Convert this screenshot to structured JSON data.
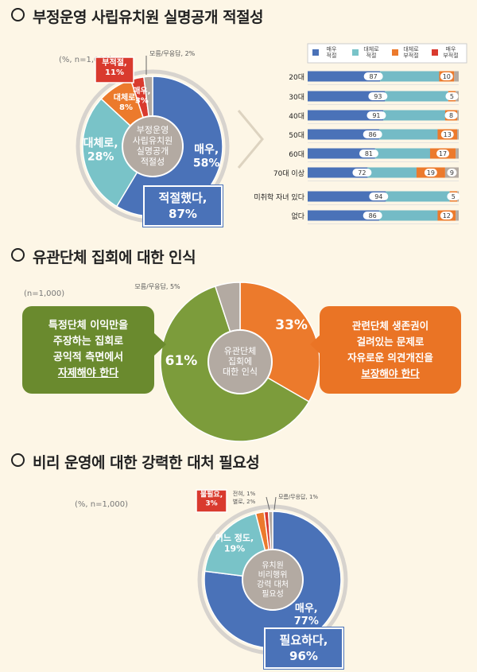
{
  "section1": {
    "title": "부정운영 사립유치원 실명공개 적절성",
    "note": "(%, n=1,000)",
    "center": [
      "부정운영",
      "사립유치원",
      "실명공개",
      "적절성"
    ],
    "callout": [
      "적절했다,",
      "87%"
    ],
    "pie_labels": [
      "매우,|58%",
      "대체로,|28%",
      "대체로,|8%",
      "매우,|3%",
      "부적절,|11%",
      "모름/무응답, 2%"
    ],
    "legend": [
      "매우|적절",
      "대체로|적절",
      "대체로|부적절",
      "매우|부적절"
    ],
    "rows": [
      "20대",
      "30대",
      "40대",
      "50대",
      "60대",
      "70대 이상",
      "미취학 자녀 있다",
      "없다"
    ]
  },
  "section2": {
    "title": "유관단체 집회에 대한 인식",
    "note": "(n=1,000)",
    "center": [
      "유관단체",
      "집회에",
      "대한 인식"
    ],
    "pie_labels": [
      "33%",
      "61%",
      "모름/무응답, 5%"
    ],
    "left_bubble": [
      "특정단체 이익만을",
      "주장하는 집회로",
      "공익적 측면에서",
      "자제해야 한다"
    ],
    "right_bubble": [
      "관련단체 생존권이",
      "걸려있는 문제로",
      "자유로운 의견개진을",
      "보장해야 한다"
    ]
  },
  "section3": {
    "title": "비리 운영에 대한 강력한 대처 필요성",
    "note": "(%, n=1,000)",
    "center": [
      "유치원",
      "비리행위",
      "강력 대처",
      "필요성"
    ],
    "callout": [
      "필요하다,",
      "96%"
    ],
    "pie_labels": [
      "매우,|77%",
      "어느 정도,|19%",
      "불필요,|3%",
      "전혀, 1%",
      "별로, 2%",
      "모름/무응답, 1%"
    ]
  },
  "colors": {
    "blue": "#4a72b8",
    "teal": "#79c3c8",
    "orange": "#ec7a2c",
    "red": "#d93a2e",
    "gray": "#b3aaa2",
    "olive": "#7c9c3b"
  },
  "chart_data": [
    {
      "type": "pie",
      "title": "부정운영 사립유치원 실명공개 적절성",
      "categories": [
        "매우 적절",
        "대체로 적절",
        "대체로 부적절",
        "매우 부적절",
        "모름/무응답"
      ],
      "values": [
        58,
        28,
        8,
        3,
        2
      ]
    },
    {
      "type": "bar",
      "title": "부정운영 사립유치원 실명공개 적절성",
      "categories": [
        "20대",
        "30대",
        "40대",
        "50대",
        "60대",
        "70대 이상",
        "미취학 자녀 있다",
        "없다"
      ],
      "series": [
        {
          "name": "적절",
          "values": [
            87,
            93,
            91,
            86,
            81,
            72,
            94,
            86
          ]
        },
        {
          "name": "부적절",
          "values": [
            10,
            5,
            8,
            13,
            17,
            19,
            5,
            12
          ]
        },
        {
          "name": "",
          "values": [
            3,
            2,
            1,
            1,
            2,
            9,
            1,
            2
          ]
        }
      ],
      "xlim": [
        0,
        100
      ]
    },
    {
      "type": "pie",
      "title": "유관단체 집회에 대한 인식",
      "categories": [
        "보장해야 한다",
        "자제해야 한다",
        "모름/무응답"
      ],
      "values": [
        33,
        61,
        5
      ]
    },
    {
      "type": "pie",
      "title": "비리 운영에 대한 강력한 대처 필요성",
      "categories": [
        "매우",
        "어느 정도",
        "별로",
        "전혀",
        "모름/무응답"
      ],
      "values": [
        77,
        19,
        2,
        1,
        1
      ]
    }
  ]
}
